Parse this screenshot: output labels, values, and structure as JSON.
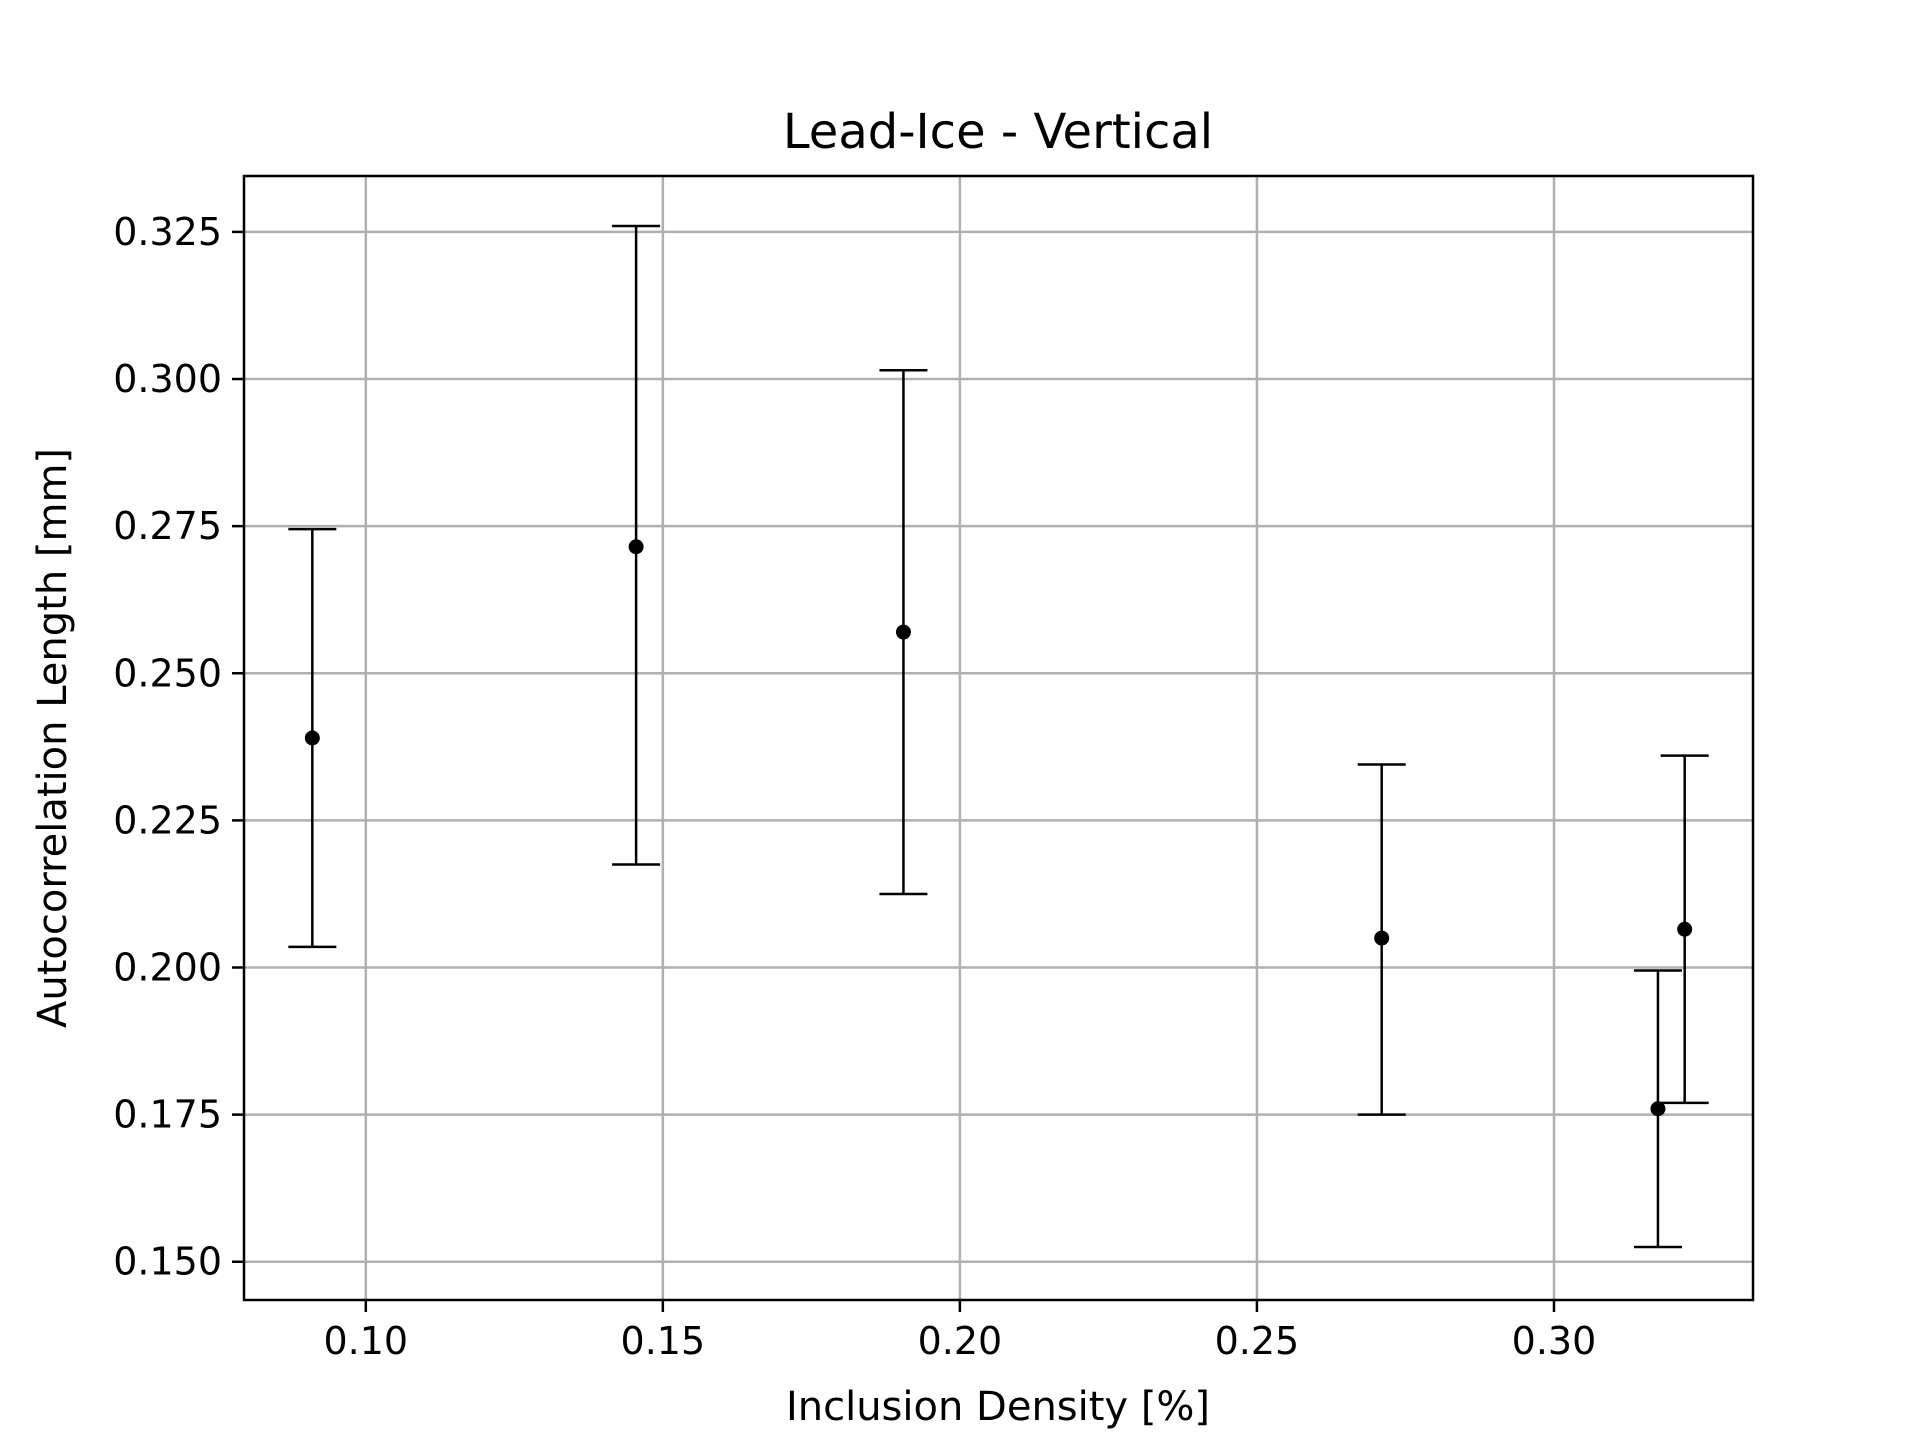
{
  "chart_data": {
    "type": "scatter",
    "title": "Lead-Ice - Vertical",
    "xlabel": "Inclusion Density [%]",
    "ylabel": "Autocorrelation Length [mm]",
    "xlim": [
      0.0795,
      0.3335
    ],
    "ylim": [
      0.1435,
      0.3345
    ],
    "xticks": [
      0.1,
      0.15,
      0.2,
      0.25,
      0.3
    ],
    "xtick_labels": [
      "0.10",
      "0.15",
      "0.20",
      "0.25",
      "0.30"
    ],
    "yticks": [
      0.15,
      0.175,
      0.2,
      0.225,
      0.25,
      0.275,
      0.3,
      0.325
    ],
    "ytick_labels": [
      "0.150",
      "0.175",
      "0.200",
      "0.225",
      "0.250",
      "0.275",
      "0.300",
      "0.325"
    ],
    "grid": true,
    "marker_color": "#000000",
    "grid_color": "#b0b0b0",
    "points": [
      {
        "x": 0.091,
        "y": 0.239,
        "ylow": 0.2035,
        "yhigh": 0.2745
      },
      {
        "x": 0.1455,
        "y": 0.2715,
        "ylow": 0.2175,
        "yhigh": 0.326
      },
      {
        "x": 0.1905,
        "y": 0.257,
        "ylow": 0.2125,
        "yhigh": 0.3015
      },
      {
        "x": 0.271,
        "y": 0.205,
        "ylow": 0.175,
        "yhigh": 0.2345
      },
      {
        "x": 0.3175,
        "y": 0.176,
        "ylow": 0.1525,
        "yhigh": 0.1995
      },
      {
        "x": 0.322,
        "y": 0.2065,
        "ylow": 0.177,
        "yhigh": 0.236
      }
    ]
  }
}
